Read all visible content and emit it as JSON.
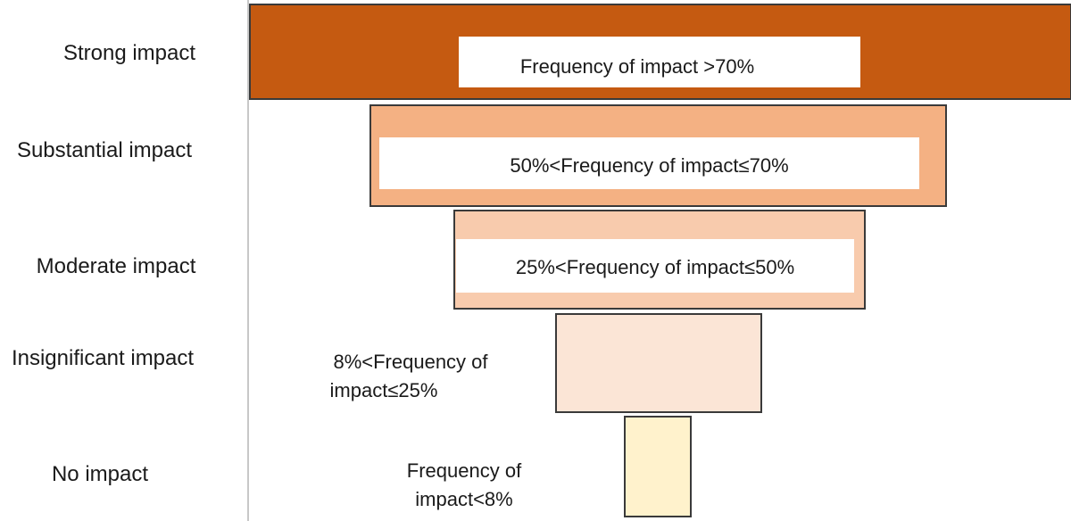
{
  "levels": [
    {
      "category": "Strong impact",
      "range_label": "Frequency of impact >70%",
      "color": "#c55a11"
    },
    {
      "category": "Substantial impact",
      "range_label": "50%<Frequency of impact≤70%",
      "color": "#f4b183"
    },
    {
      "category": "Moderate impact",
      "range_label": "25%<Frequency of impact≤50%",
      "color": "#f8cbad"
    },
    {
      "category": "Insignificant impact",
      "range_label_lines": [
        "8%<Frequency of",
        "impact≤25%"
      ],
      "color": "#fbe5d6"
    },
    {
      "category": "No impact",
      "range_label_lines": [
        "Frequency of",
        "impact<8%"
      ],
      "color": "#fff2cc"
    }
  ]
}
